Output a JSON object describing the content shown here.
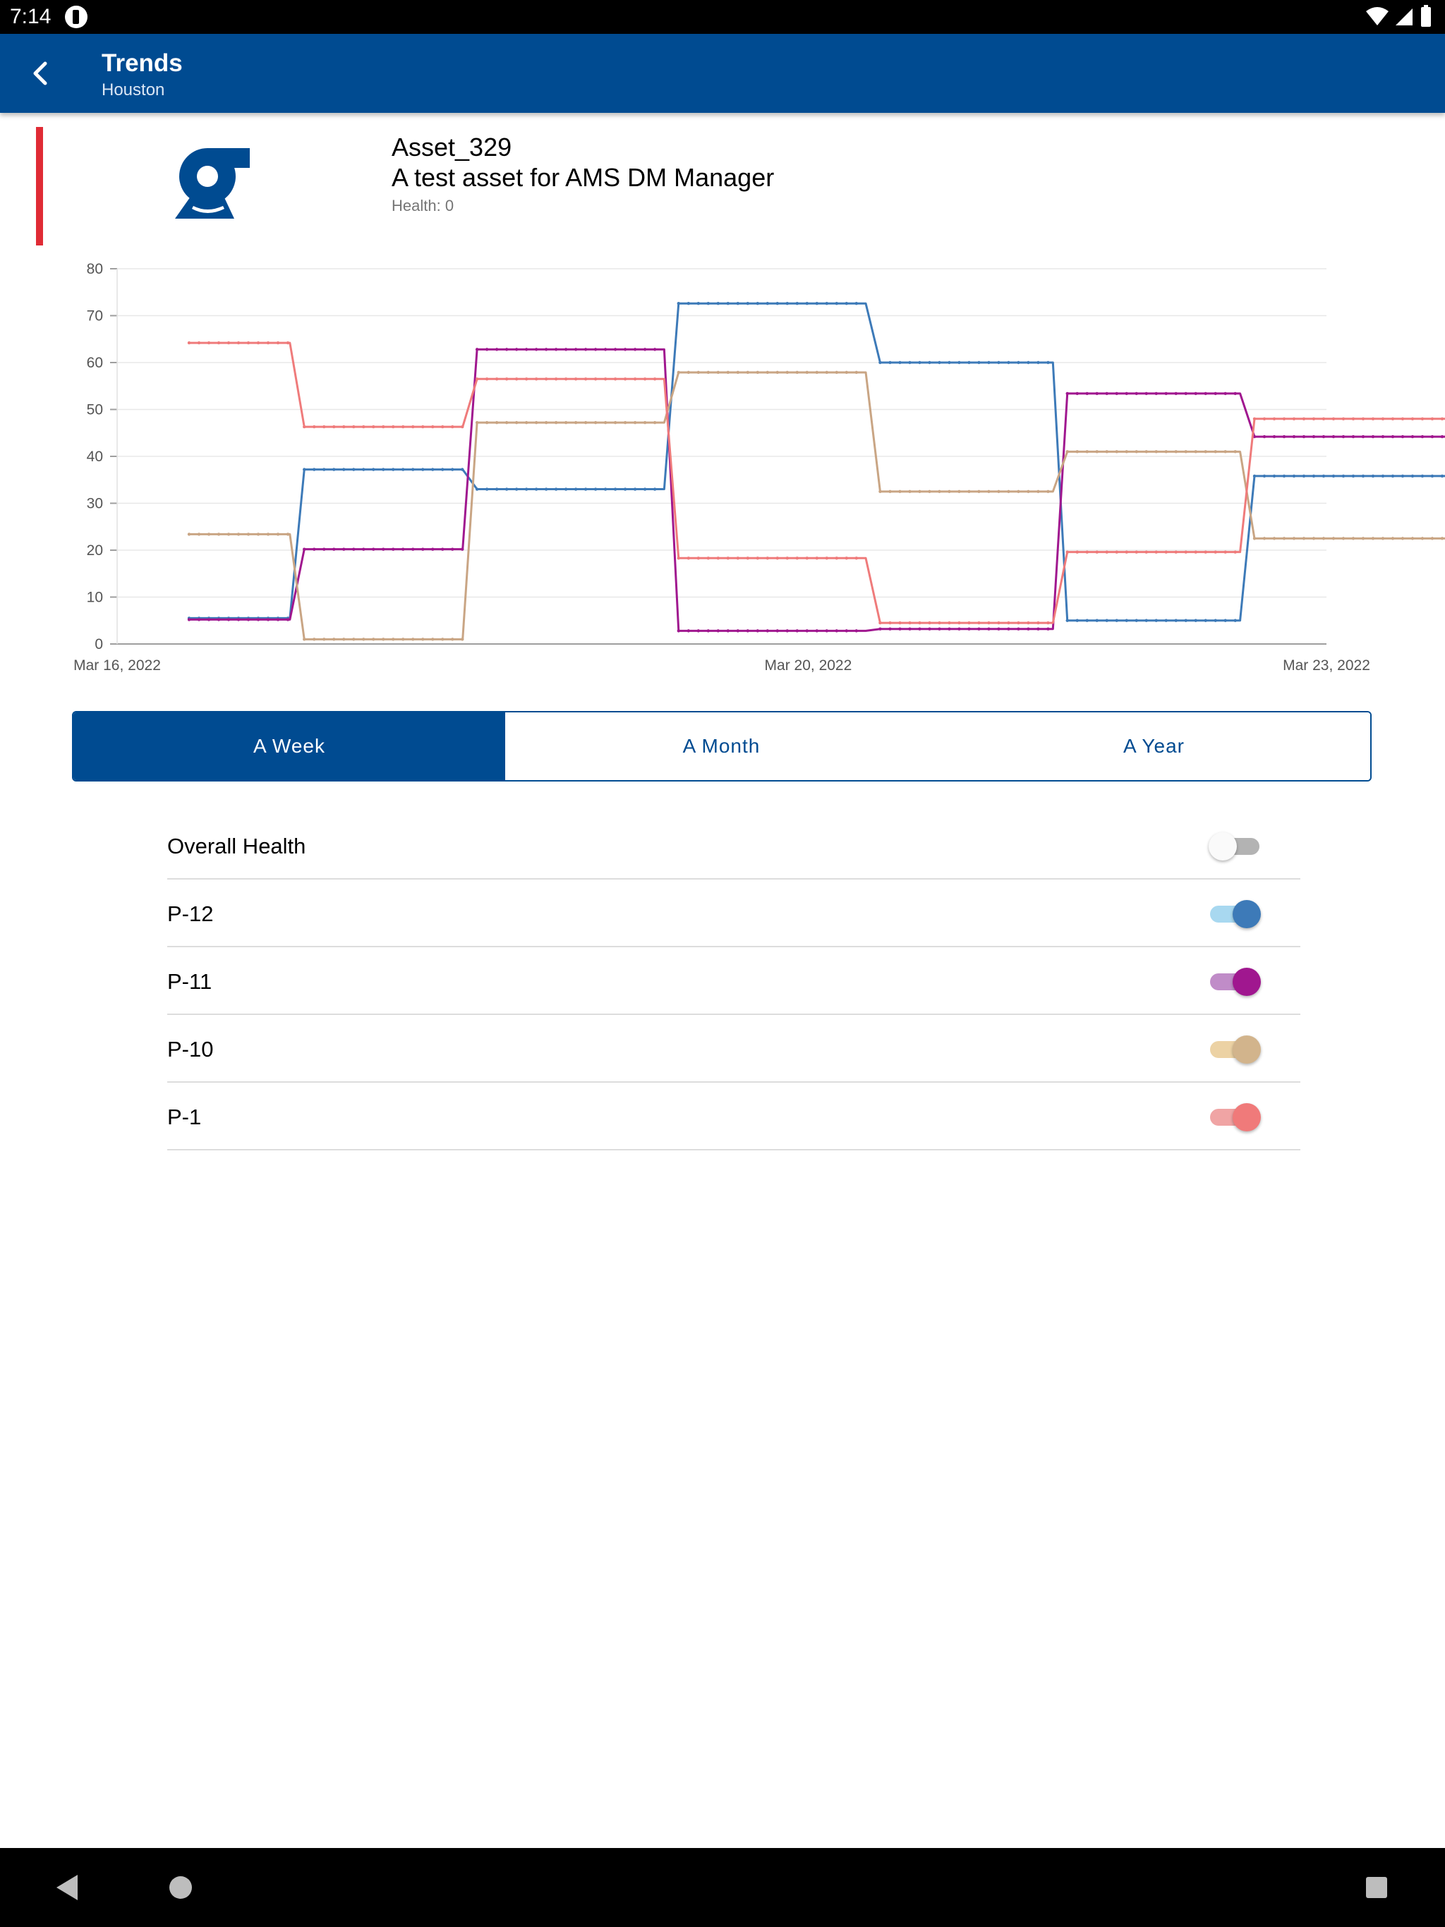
{
  "status_bar": {
    "time": "7:14"
  },
  "app_bar": {
    "title": "Trends",
    "subtitle": "Houston"
  },
  "asset": {
    "name": "Asset_329",
    "description": "A test asset for AMS DM Manager",
    "health_text": "Health: 0",
    "health_color": "#e02b35",
    "icon": "pump-icon"
  },
  "chart_data": {
    "type": "line",
    "ylim": [
      0,
      80
    ],
    "y_ticks": [
      0,
      10,
      20,
      30,
      40,
      50,
      60,
      70,
      80
    ],
    "x_ticks": [
      "Mar 16, 2022",
      "Mar 20, 2022",
      "Mar 23, 2022"
    ],
    "x_range": [
      "Mar 16, 2022",
      "Mar 23, 2022"
    ],
    "grid": true,
    "series": [
      {
        "name": "P-12",
        "color": "#3d7ab8",
        "points": [
          [
            "Mar 16, 2022 10:00",
            5.5
          ],
          [
            "Mar 17, 2022 00:00",
            5.5
          ],
          [
            "Mar 17, 2022 02:00",
            37.2
          ],
          [
            "Mar 18, 2022 00:00",
            37.2
          ],
          [
            "Mar 18, 2022 02:00",
            33.0
          ],
          [
            "Mar 19, 2022 04:00",
            33.0
          ],
          [
            "Mar 19, 2022 06:00",
            72.6
          ],
          [
            "Mar 20, 2022 08:00",
            72.6
          ],
          [
            "Mar 20, 2022 10:00",
            60.0
          ],
          [
            "Mar 21, 2022 10:00",
            60.0
          ],
          [
            "Mar 21, 2022 12:00",
            5.0
          ],
          [
            "Mar 22, 2022 12:00",
            5.0
          ],
          [
            "Mar 22, 2022 14:00",
            35.8
          ],
          [
            "Mar 23, 2022 22:00",
            35.8
          ]
        ]
      },
      {
        "name": "P-11",
        "color": "#a0178f",
        "points": [
          [
            "Mar 16, 2022 10:00",
            5.2
          ],
          [
            "Mar 17, 2022 00:00",
            5.2
          ],
          [
            "Mar 17, 2022 02:00",
            20.2
          ],
          [
            "Mar 18, 2022 00:00",
            20.2
          ],
          [
            "Mar 18, 2022 02:00",
            62.8
          ],
          [
            "Mar 19, 2022 04:00",
            62.8
          ],
          [
            "Mar 19, 2022 06:00",
            2.8
          ],
          [
            "Mar 20, 2022 08:00",
            2.8
          ],
          [
            "Mar 20, 2022 10:00",
            3.2
          ],
          [
            "Mar 21, 2022 10:00",
            3.2
          ],
          [
            "Mar 21, 2022 12:00",
            53.4
          ],
          [
            "Mar 22, 2022 12:00",
            53.4
          ],
          [
            "Mar 22, 2022 14:00",
            44.2
          ],
          [
            "Mar 23, 2022 22:00",
            44.2
          ]
        ]
      },
      {
        "name": "P-10",
        "color": "#c9a584",
        "points": [
          [
            "Mar 16, 2022 10:00",
            23.4
          ],
          [
            "Mar 17, 2022 00:00",
            23.4
          ],
          [
            "Mar 17, 2022 02:00",
            1.0
          ],
          [
            "Mar 18, 2022 00:00",
            1.0
          ],
          [
            "Mar 18, 2022 02:00",
            47.2
          ],
          [
            "Mar 19, 2022 04:00",
            47.2
          ],
          [
            "Mar 19, 2022 06:00",
            57.9
          ],
          [
            "Mar 20, 2022 08:00",
            57.9
          ],
          [
            "Mar 20, 2022 10:00",
            32.5
          ],
          [
            "Mar 21, 2022 10:00",
            32.5
          ],
          [
            "Mar 21, 2022 12:00",
            41.0
          ],
          [
            "Mar 22, 2022 12:00",
            41.0
          ],
          [
            "Mar 22, 2022 14:00",
            22.5
          ],
          [
            "Mar 23, 2022 22:00",
            22.5
          ]
        ]
      },
      {
        "name": "P-1",
        "color": "#ef7b7b",
        "points": [
          [
            "Mar 16, 2022 10:00",
            64.2
          ],
          [
            "Mar 17, 2022 00:00",
            64.2
          ],
          [
            "Mar 17, 2022 02:00",
            46.3
          ],
          [
            "Mar 18, 2022 00:00",
            46.3
          ],
          [
            "Mar 18, 2022 02:00",
            56.5
          ],
          [
            "Mar 19, 2022 04:00",
            56.5
          ],
          [
            "Mar 19, 2022 06:00",
            18.3
          ],
          [
            "Mar 20, 2022 08:00",
            18.3
          ],
          [
            "Mar 20, 2022 10:00",
            4.5
          ],
          [
            "Mar 21, 2022 10:00",
            4.5
          ],
          [
            "Mar 21, 2022 12:00",
            19.6
          ],
          [
            "Mar 22, 2022 12:00",
            19.6
          ],
          [
            "Mar 22, 2022 14:00",
            48.0
          ],
          [
            "Mar 23, 2022 22:00",
            48.0
          ]
        ]
      }
    ]
  },
  "range_tabs": [
    {
      "label": "A Week",
      "selected": true
    },
    {
      "label": "A Month",
      "selected": false
    },
    {
      "label": "A Year",
      "selected": false
    }
  ],
  "toggles": [
    {
      "label": "Overall Health",
      "on": false,
      "color": "#9e9e9e",
      "track_color": "#b3b3b3"
    },
    {
      "label": "P-12",
      "on": true,
      "color": "#3d7ab8",
      "track_color": "#a8d8f0"
    },
    {
      "label": "P-11",
      "on": true,
      "color": "#a0178f",
      "track_color": "#c08cc8"
    },
    {
      "label": "P-10",
      "on": true,
      "color": "#d2b48c",
      "track_color": "#ecd2a4"
    },
    {
      "label": "P-1",
      "on": true,
      "color": "#f07a7a",
      "track_color": "#f0a4a4"
    }
  ]
}
